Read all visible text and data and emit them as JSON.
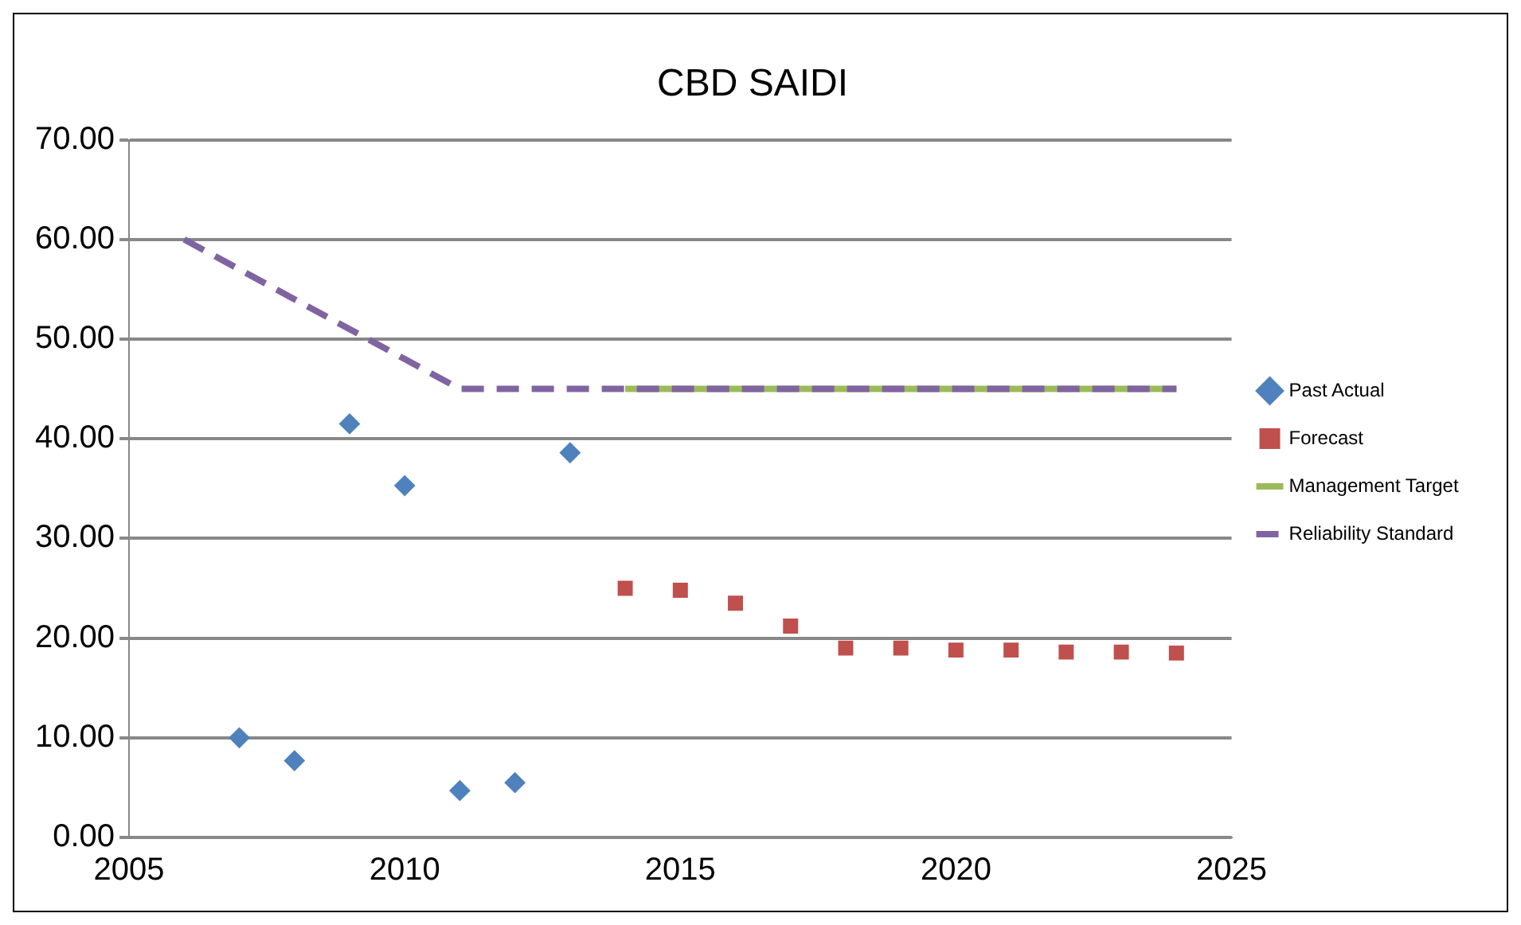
{
  "chart_data": {
    "type": "scatter",
    "title": "CBD SAIDI",
    "series": [
      {
        "name": "Past Actual",
        "marker": "diamond",
        "color": "#4f81bd",
        "x": [
          2007,
          2008,
          2009,
          2010,
          2011,
          2012,
          2013
        ],
        "values": [
          10.0,
          7.7,
          41.5,
          35.3,
          4.7,
          5.5,
          38.6
        ]
      },
      {
        "name": "Forecast",
        "marker": "square",
        "color": "#c0504d",
        "x": [
          2014,
          2015,
          2016,
          2017,
          2018,
          2019,
          2020,
          2021,
          2022,
          2023,
          2024
        ],
        "values": [
          25.0,
          24.8,
          23.5,
          21.2,
          19.0,
          19.0,
          18.8,
          18.8,
          18.6,
          18.6,
          18.5
        ]
      },
      {
        "name": "Management Target",
        "type": "line",
        "marker": "none",
        "line_style": "solid",
        "color": "#9bbb59",
        "x": [
          2014,
          2015,
          2016,
          2017,
          2018,
          2019,
          2020,
          2021,
          2022,
          2023,
          2024
        ],
        "values": [
          45,
          45,
          45,
          45,
          45,
          45,
          45,
          45,
          45,
          45,
          45
        ]
      },
      {
        "name": "Reliability Standard",
        "type": "line",
        "marker": "none",
        "line_style": "dashed",
        "color": "#8064a2",
        "x": [
          2006,
          2007,
          2008,
          2009,
          2010,
          2011,
          2012,
          2013,
          2014,
          2015,
          2016,
          2017,
          2018,
          2019,
          2020,
          2021,
          2022,
          2023,
          2024
        ],
        "values": [
          60,
          57,
          54,
          51,
          48,
          45,
          45,
          45,
          45,
          45,
          45,
          45,
          45,
          45,
          45,
          45,
          45,
          45,
          45
        ]
      }
    ],
    "xlim": [
      2005,
      2025
    ],
    "xticks": [
      2005,
      2010,
      2015,
      2020,
      2025
    ],
    "ylim": [
      0,
      70
    ],
    "yticks": [
      {
        "value": 0,
        "label": "0.00"
      },
      {
        "value": 10,
        "label": "10.00"
      },
      {
        "value": 20,
        "label": "20.00"
      },
      {
        "value": 30,
        "label": "30.00"
      },
      {
        "value": 40,
        "label": "40.00"
      },
      {
        "value": 50,
        "label": "50.00"
      },
      {
        "value": 60,
        "label": "60.00"
      },
      {
        "value": 70,
        "label": "70.00"
      }
    ],
    "grid": "y",
    "legend": "right"
  }
}
